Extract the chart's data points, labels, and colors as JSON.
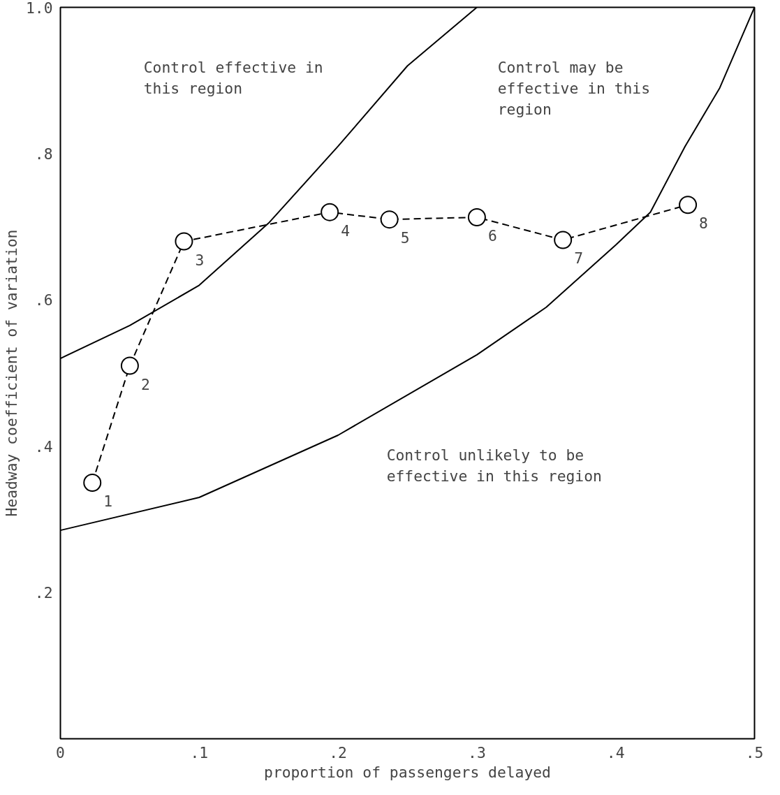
{
  "chart_data": {
    "type": "line",
    "xlabel": "proportion of passengers delayed",
    "ylabel": "Headway coefficient of variation",
    "xlim": [
      0,
      0.5
    ],
    "ylim": [
      0,
      1.0
    ],
    "xticks": [
      {
        "value": 0,
        "label": "0"
      },
      {
        "value": 0.1,
        "label": ".1"
      },
      {
        "value": 0.2,
        "label": ".2"
      },
      {
        "value": 0.3,
        "label": ".3"
      },
      {
        "value": 0.4,
        "label": ".4"
      },
      {
        "value": 0.5,
        "label": ".5"
      }
    ],
    "yticks": [
      {
        "value": 0.2,
        "label": ".2"
      },
      {
        "value": 0.4,
        "label": ".4"
      },
      {
        "value": 0.6,
        "label": ".6"
      },
      {
        "value": 0.8,
        "label": ".8"
      },
      {
        "value": 1.0,
        "label": "1.0"
      }
    ],
    "grid": false,
    "series": [
      {
        "color": "#000000",
        "marker": "none",
        "line_style": "solid",
        "x": [
          0,
          0.05,
          0.1,
          0.15,
          0.2,
          0.25,
          0.3
        ],
        "values": [
          0.52,
          0.565,
          0.62,
          0.705,
          0.81,
          0.92,
          1.0
        ]
      },
      {
        "color": "#000000",
        "marker": "none",
        "line_style": "solid",
        "x": [
          0,
          0.1,
          0.2,
          0.3,
          0.35,
          0.4,
          0.425,
          0.45,
          0.475,
          0.5
        ],
        "values": [
          0.285,
          0.33,
          0.415,
          0.525,
          0.59,
          0.675,
          0.72,
          0.81,
          0.89,
          1.0
        ]
      },
      {
        "color": "#000000",
        "marker": "circle",
        "line_style": "dashed",
        "x": [
          0.023,
          0.05,
          0.089,
          0.194,
          0.237,
          0.3,
          0.362,
          0.452
        ],
        "values": [
          0.35,
          0.51,
          0.68,
          0.72,
          0.71,
          0.713,
          0.682,
          0.73
        ]
      }
    ],
    "annotations": [
      "Control effective in\nthis region",
      "Control may be\neffective in this\nregion",
      "Control unlikely to be\neffective in this region",
      {
        "text": "1",
        "x": 0.023,
        "y": 0.35
      },
      {
        "text": "2",
        "x": 0.05,
        "y": 0.51
      },
      {
        "text": "3",
        "x": 0.089,
        "y": 0.68
      },
      {
        "text": "4",
        "x": 0.194,
        "y": 0.72
      },
      {
        "text": "5",
        "x": 0.237,
        "y": 0.71
      },
      {
        "text": "6",
        "x": 0.3,
        "y": 0.713
      },
      {
        "text": "7",
        "x": 0.362,
        "y": 0.682
      },
      {
        "text": "8",
        "x": 0.452,
        "y": 0.73
      }
    ]
  }
}
